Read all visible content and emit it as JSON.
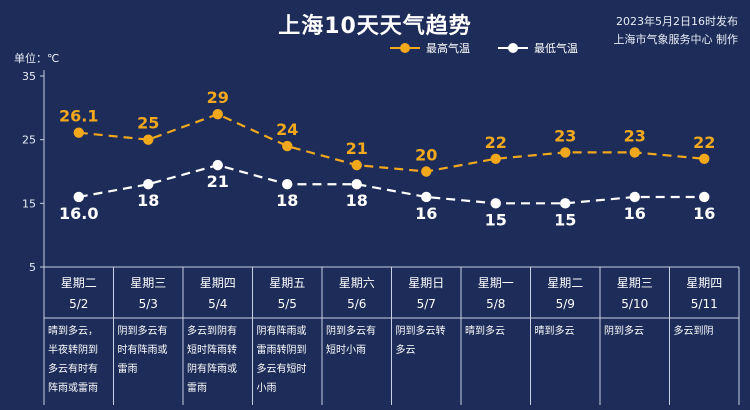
{
  "header": {
    "title": "上海10天天气趋势",
    "published": "2023年5月2日16时发布",
    "publisher": "上海市气象服务中心 制作"
  },
  "colors": {
    "background": "#1d2c58",
    "high_series": "#f2a81d",
    "low_series": "#ffffff"
  },
  "chart_data": {
    "type": "line",
    "unit_label": "单位：℃",
    "y_ticks": [
      "35",
      "25",
      "15",
      "5"
    ],
    "ylim": [
      5,
      35
    ],
    "grid": false,
    "legend_position": "top-right",
    "categories": [
      {
        "weekday": "星期二",
        "date": "5/2",
        "desc": "晴到多云，\n半夜转阴到\n多云有时有\n阵雨或雷雨"
      },
      {
        "weekday": "星期三",
        "date": "5/3",
        "desc": "阴到多云有\n时有阵雨或\n雷雨"
      },
      {
        "weekday": "星期四",
        "date": "5/4",
        "desc": "多云到阴有\n短时阵雨转\n阴有阵雨或\n雷雨"
      },
      {
        "weekday": "星期五",
        "date": "5/5",
        "desc": "阴有阵雨或\n雷雨转阴到\n多云有短时\n小雨"
      },
      {
        "weekday": "星期六",
        "date": "5/6",
        "desc": "阴到多云有\n短时小雨"
      },
      {
        "weekday": "星期日",
        "date": "5/7",
        "desc": "阴到多云转\n多云"
      },
      {
        "weekday": "星期一",
        "date": "5/8",
        "desc": "晴到多云"
      },
      {
        "weekday": "星期二",
        "date": "5/9",
        "desc": "晴到多云"
      },
      {
        "weekday": "星期三",
        "date": "5/10",
        "desc": "阴到多云"
      },
      {
        "weekday": "星期四",
        "date": "5/11",
        "desc": "多云到阴"
      }
    ],
    "series": [
      {
        "name": "最高气温",
        "values": [
          26.1,
          25,
          29,
          24,
          21,
          20,
          22,
          23,
          23,
          22
        ],
        "labels": [
          "26.1",
          "25",
          "29",
          "24",
          "21",
          "20",
          "22",
          "23",
          "23",
          "22"
        ]
      },
      {
        "name": "最低气温",
        "values": [
          16.0,
          18,
          21,
          18,
          18,
          16,
          15,
          15,
          16,
          16
        ],
        "labels": [
          "16.0",
          "18",
          "21",
          "18",
          "18",
          "16",
          "15",
          "15",
          "16",
          "16"
        ]
      }
    ]
  }
}
